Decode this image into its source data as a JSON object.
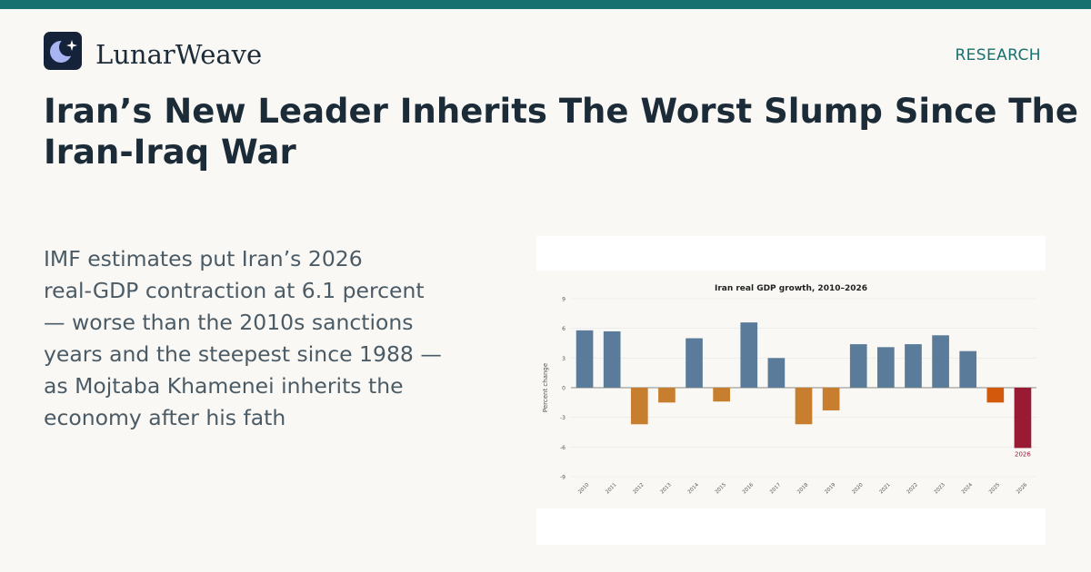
{
  "site": {
    "brand_name": "LunarWeave",
    "logo_icon": "crescent-moon-star-icon",
    "section_label": "RESEARCH",
    "colors": {
      "accent": "#17716f",
      "logo_background": "#15233a",
      "logo_moon": "#a9b4f2",
      "page_background": "#f9f8f4",
      "headline": "#1c2b38",
      "body_text": "#4b5b66"
    }
  },
  "article": {
    "headline_lines": [
      "Iran’s New Leader Inherits The Worst Slump Since The",
      "Iran-Iraq War"
    ],
    "summary_lines": [
      "IMF estimates put Iran’s 2026",
      "real-GDP contraction at 6.1 percent",
      "— worse than the 2010s sanctions",
      "years and the steepest since 1988 —",
      "as Mojtaba Khamenei inherits the",
      "economy after his fath"
    ]
  },
  "chart_data": {
    "type": "bar",
    "title": "Iran real GDP growth, 2010–2026",
    "xlabel": "",
    "ylabel": "Percent change",
    "categories": [
      "2010",
      "2011",
      "2012",
      "2013",
      "2014",
      "2015",
      "2016",
      "2017",
      "2018",
      "2019",
      "2020",
      "2021",
      "2022",
      "2023",
      "2024",
      "2025",
      "2026"
    ],
    "values": [
      5.8,
      5.7,
      -3.7,
      -1.5,
      5.0,
      -1.4,
      6.6,
      3.0,
      -3.7,
      -2.3,
      4.4,
      4.1,
      4.4,
      5.3,
      3.7,
      -1.5,
      -6.1
    ],
    "ylim": [
      -9,
      9
    ],
    "yticks": [
      -9,
      -6,
      -3,
      0,
      3,
      6,
      9
    ],
    "grid": true,
    "legend": "none",
    "annotation": "2026",
    "colors": {
      "positive": "#5a7c9a",
      "negative": "#c77e2e",
      "2025": "#d35a0c",
      "2026": "#981b33"
    }
  }
}
